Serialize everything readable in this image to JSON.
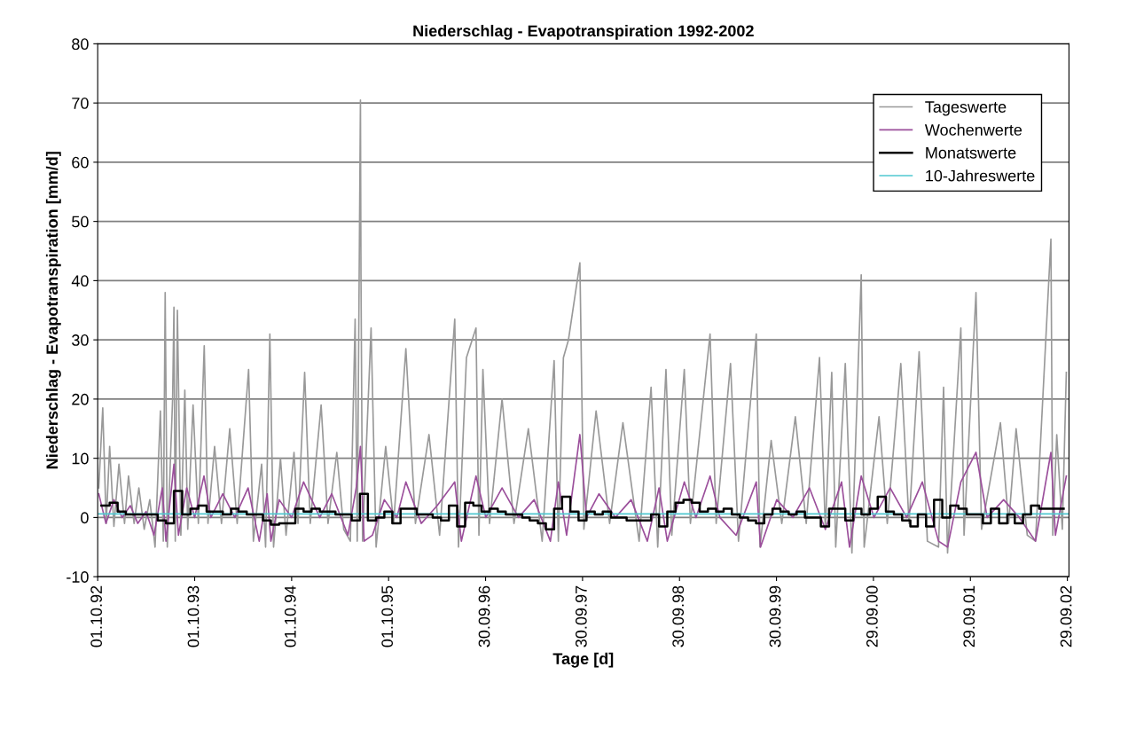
{
  "chart_data": {
    "type": "line",
    "title": "Niederschlag - Evapotranspiration 1992-2002",
    "xlabel": "Tage [d]",
    "ylabel": "Niederschlag - Evapotranspiration [mm/d]",
    "xlim": [
      "1992-10-01",
      "2002-10-05"
    ],
    "xticks": [
      {
        "value": "1992-10-01",
        "label": "01.10.92"
      },
      {
        "value": "1993-10-01",
        "label": "01.10.93"
      },
      {
        "value": "1994-10-01",
        "label": "01.10.94"
      },
      {
        "value": "1995-10-01",
        "label": "01.10.95"
      },
      {
        "value": "1996-09-30",
        "label": "30.09.96"
      },
      {
        "value": "1997-09-30",
        "label": "30.09.97"
      },
      {
        "value": "1998-09-30",
        "label": "30.09.98"
      },
      {
        "value": "1999-09-30",
        "label": "30.09.99"
      },
      {
        "value": "2000-09-29",
        "label": "29.09.00"
      },
      {
        "value": "2001-09-29",
        "label": "29.09.01"
      },
      {
        "value": "2002-09-29",
        "label": "29.09.02"
      }
    ],
    "ylim": [
      -10,
      80
    ],
    "yticks": [
      -10,
      0,
      10,
      20,
      30,
      40,
      50,
      60,
      70,
      80
    ],
    "grid": "y",
    "legend": "top right",
    "series": [
      {
        "name": "Tageswerte",
        "color": "#999999",
        "x": [
          "1992-10-05",
          "1992-10-20",
          "1992-11-02",
          "1992-11-15",
          "1992-12-01",
          "1992-12-20",
          "1993-01-10",
          "1993-01-25",
          "1993-02-15",
          "1993-03-05",
          "1993-03-25",
          "1993-04-15",
          "1993-05-05",
          "1993-05-25",
          "1993-06-05",
          "1993-06-12",
          "1993-06-20",
          "1993-07-10",
          "1993-07-15",
          "1993-07-20",
          "1993-07-28",
          "1993-08-10",
          "1993-08-25",
          "1993-09-05",
          "1993-09-25",
          "1993-10-15",
          "1993-11-06",
          "1993-11-20",
          "1993-12-15",
          "1994-01-10",
          "1994-02-10",
          "1994-03-10",
          "1994-04-22",
          "1994-05-10",
          "1994-06-10",
          "1994-06-25",
          "1994-07-11",
          "1994-07-25",
          "1994-08-20",
          "1994-09-10",
          "1994-10-10",
          "1994-10-25",
          "1994-11-19",
          "1994-12-10",
          "1995-01-20",
          "1995-02-15",
          "1995-03-20",
          "1995-04-15",
          "1995-05-10",
          "1995-05-28",
          "1995-06-05",
          "1995-06-17",
          "1995-06-19",
          "1995-06-25",
          "1995-07-27",
          "1995-08-15",
          "1995-09-20",
          "1995-10-20",
          "1995-12-05",
          "1996-01-10",
          "1996-03-01",
          "1996-04-10",
          "1996-06-06",
          "1996-06-20",
          "1996-07-20",
          "1996-08-25",
          "1996-09-05",
          "1996-09-20",
          "1996-10-15",
          "1996-12-01",
          "1997-01-15",
          "1997-03-10",
          "1997-05-01",
          "1997-06-15",
          "1997-07-01",
          "1997-07-20",
          "1997-08-08",
          "1997-09-20",
          "1997-10-05",
          "1997-11-20",
          "1998-01-10",
          "1998-03-01",
          "1998-05-01",
          "1998-06-15",
          "1998-07-10",
          "1998-08-10",
          "1998-09-01",
          "1998-10-18",
          "1998-11-10",
          "1999-01-23",
          "1999-02-15",
          "1999-04-10",
          "1999-05-10",
          "1999-07-16",
          "1999-07-30",
          "1999-09-10",
          "1999-10-20",
          "1999-12-10",
          "2000-01-20",
          "2000-03-10",
          "2000-04-01",
          "2000-04-25",
          "2000-05-10",
          "2000-06-15",
          "2000-07-10",
          "2000-08-14",
          "2000-08-25",
          "2000-10-20",
          "2000-11-20",
          "2001-01-10",
          "2001-02-10",
          "2001-03-20",
          "2001-04-20",
          "2001-06-01",
          "2001-06-20",
          "2001-07-05",
          "2001-08-24",
          "2001-09-05",
          "2001-10-20",
          "2001-11-10",
          "2002-01-20",
          "2002-02-20",
          "2002-03-20",
          "2002-05-01",
          "2002-06-01",
          "2002-07-29",
          "2002-08-05",
          "2002-08-20",
          "2002-09-10",
          "2002-09-25"
        ],
        "values": [
          5,
          18.5,
          -1,
          12,
          -1.5,
          9,
          -1,
          7,
          -1,
          5,
          -2,
          3,
          -5,
          18,
          -4,
          38,
          -5,
          20,
          35.5,
          -4,
          35,
          -3,
          21.5,
          -2,
          19,
          -1,
          29,
          -1,
          12,
          -1,
          15,
          -1,
          25,
          -4,
          9,
          -5,
          31,
          -5,
          10,
          -3,
          11,
          -1,
          24.5,
          -1,
          19,
          -1,
          11,
          -2,
          -4,
          33.5,
          -4,
          70.5,
          41,
          -4,
          32,
          -5,
          12,
          -1,
          28.5,
          -1,
          14,
          -3,
          33.5,
          -5,
          27,
          32,
          -3,
          25,
          -1,
          20,
          -1,
          15,
          -4,
          26.5,
          -4,
          27,
          30,
          43,
          -2,
          18,
          -1,
          16,
          -4,
          22,
          -5,
          25,
          -3,
          25,
          -1,
          31,
          -1,
          26,
          -4,
          31,
          -5,
          13,
          -1,
          17,
          -1,
          27,
          -2,
          24.5,
          -5,
          26,
          -6,
          41,
          -5,
          17,
          -1,
          26,
          -1,
          28,
          -4,
          -5,
          22,
          -6,
          32,
          -3,
          38,
          -2,
          16,
          -1,
          15,
          -3,
          -4,
          47,
          -3,
          14,
          -2,
          24.5
        ]
      },
      {
        "name": "Wochenwerte",
        "color": "#9b4f9b",
        "x": [
          "1992-10-05",
          "1992-11-01",
          "1992-12-01",
          "1993-01-01",
          "1993-02-01",
          "1993-03-01",
          "1993-04-01",
          "1993-05-01",
          "1993-06-01",
          "1993-06-15",
          "1993-07-15",
          "1993-08-01",
          "1993-09-01",
          "1993-10-01",
          "1993-11-05",
          "1993-12-01",
          "1994-01-15",
          "1994-03-01",
          "1994-04-20",
          "1994-06-01",
          "1994-07-01",
          "1994-07-15",
          "1994-08-15",
          "1994-10-01",
          "1994-11-15",
          "1995-01-15",
          "1995-03-01",
          "1995-05-01",
          "1995-06-01",
          "1995-06-17",
          "1995-07-01",
          "1995-08-01",
          "1995-09-15",
          "1995-11-01",
          "1995-12-05",
          "1996-02-01",
          "1996-04-01",
          "1996-06-06",
          "1996-07-01",
          "1996-08-25",
          "1996-10-01",
          "1996-12-01",
          "1997-02-01",
          "1997-04-01",
          "1997-06-01",
          "1997-07-01",
          "1997-08-01",
          "1997-09-20",
          "1997-10-15",
          "1997-12-01",
          "1998-02-01",
          "1998-04-01",
          "1998-06-01",
          "1998-07-15",
          "1998-08-15",
          "1998-10-18",
          "1998-12-01",
          "1999-01-23",
          "1999-03-01",
          "1999-05-01",
          "1999-07-16",
          "1999-08-01",
          "1999-10-01",
          "1999-12-01",
          "2000-02-01",
          "2000-04-01",
          "2000-06-01",
          "2000-07-01",
          "2000-08-14",
          "2000-10-01",
          "2000-12-01",
          "2001-02-01",
          "2001-04-01",
          "2001-06-01",
          "2001-07-05",
          "2001-08-24",
          "2001-10-20",
          "2001-12-01",
          "2002-02-01",
          "2002-04-01",
          "2002-06-01",
          "2002-07-29",
          "2002-08-15",
          "2002-09-25"
        ],
        "values": [
          4,
          -1,
          3,
          0,
          2,
          -1,
          1,
          -3,
          5,
          -4,
          9,
          -3,
          5,
          0,
          7,
          0,
          4,
          0,
          5,
          -4,
          4,
          -4,
          3,
          0,
          6,
          0,
          4,
          -3,
          5,
          12,
          -4,
          -3,
          3,
          0,
          6,
          -1,
          2,
          6,
          -4,
          7,
          0,
          5,
          0,
          3,
          -4,
          6,
          -3,
          14,
          0,
          4,
          0,
          3,
          -4,
          5,
          -4,
          6,
          0,
          7,
          0,
          -3,
          6,
          -5,
          3,
          0,
          5,
          -2,
          6,
          -5,
          7,
          0,
          5,
          0,
          6,
          -4,
          -5,
          6,
          11,
          0,
          3,
          0,
          -4,
          11,
          -3,
          7
        ]
      },
      {
        "name": "Monatswerte",
        "type": "step",
        "color": "#000000",
        "x": [
          "1992-10",
          "1992-11",
          "1992-12",
          "1993-01",
          "1993-02",
          "1993-03",
          "1993-04",
          "1993-05",
          "1993-06",
          "1993-07",
          "1993-08",
          "1993-09",
          "1993-10",
          "1993-11",
          "1993-12",
          "1994-01",
          "1994-02",
          "1994-03",
          "1994-04",
          "1994-05",
          "1994-06",
          "1994-07",
          "1994-08",
          "1994-09",
          "1994-10",
          "1994-11",
          "1994-12",
          "1995-01",
          "1995-02",
          "1995-03",
          "1995-04",
          "1995-05",
          "1995-06",
          "1995-07",
          "1995-08",
          "1995-09",
          "1995-10",
          "1995-11",
          "1995-12",
          "1996-01",
          "1996-02",
          "1996-03",
          "1996-04",
          "1996-05",
          "1996-06",
          "1996-07",
          "1996-08",
          "1996-09",
          "1996-10",
          "1996-11",
          "1996-12",
          "1997-01",
          "1997-02",
          "1997-03",
          "1997-04",
          "1997-05",
          "1997-06",
          "1997-07",
          "1997-08",
          "1997-09",
          "1997-10",
          "1997-11",
          "1997-12",
          "1998-01",
          "1998-02",
          "1998-03",
          "1998-04",
          "1998-05",
          "1998-06",
          "1998-07",
          "1998-08",
          "1998-09",
          "1998-10",
          "1998-11",
          "1998-12",
          "1999-01",
          "1999-02",
          "1999-03",
          "1999-04",
          "1999-05",
          "1999-06",
          "1999-07",
          "1999-08",
          "1999-09",
          "1999-10",
          "1999-11",
          "1999-12",
          "2000-01",
          "2000-02",
          "2000-03",
          "2000-04",
          "2000-05",
          "2000-06",
          "2000-07",
          "2000-08",
          "2000-09",
          "2000-10",
          "2000-11",
          "2000-12",
          "2001-01",
          "2001-02",
          "2001-03",
          "2001-04",
          "2001-05",
          "2001-06",
          "2001-07",
          "2001-08",
          "2001-09",
          "2001-10",
          "2001-11",
          "2001-12",
          "2002-01",
          "2002-02",
          "2002-03",
          "2002-04",
          "2002-05",
          "2002-06",
          "2002-07",
          "2002-08",
          "2002-09"
        ],
        "values": [
          2,
          2.5,
          1,
          0.5,
          0.5,
          0.5,
          0.5,
          -0.5,
          -1,
          4.5,
          0.5,
          1.5,
          2,
          1,
          1,
          0.5,
          1.5,
          1,
          0.5,
          0.5,
          -0.5,
          -1.2,
          -1,
          -1,
          1.5,
          1,
          1.5,
          1,
          1,
          0.5,
          0.5,
          -0.5,
          4,
          -0.5,
          0,
          1,
          -1,
          1.5,
          1.5,
          0.5,
          0.5,
          0,
          -0.5,
          2,
          -1.5,
          2.5,
          2,
          1,
          1.5,
          1,
          0.5,
          0.5,
          0,
          -0.5,
          -1,
          -2,
          1.5,
          3.5,
          1,
          -0.5,
          1,
          0.5,
          1,
          0,
          0,
          -0.5,
          -0.5,
          -0.5,
          0.5,
          -1.5,
          1,
          2.5,
          3,
          2.5,
          1,
          1.5,
          1,
          1.5,
          0.5,
          0,
          -0.5,
          -1,
          0.5,
          1.5,
          1,
          0.5,
          1,
          0,
          0,
          -1.5,
          1.5,
          1.5,
          -0.5,
          1.5,
          0.5,
          1.5,
          3.5,
          1,
          0.5,
          -0.5,
          -1.5,
          0.5,
          -1.5,
          3,
          0,
          2,
          1.5,
          0.5,
          0.5,
          -1,
          1.5,
          -1,
          0.5,
          -1,
          0.5,
          2,
          1.5,
          1.5,
          1.5,
          1.5
        ]
      },
      {
        "name": "10-Jahreswerte",
        "color": "#4fc8d0",
        "x": [
          "1992-10-01",
          "2002-10-01"
        ],
        "values": [
          0.6,
          0.6
        ]
      }
    ]
  }
}
